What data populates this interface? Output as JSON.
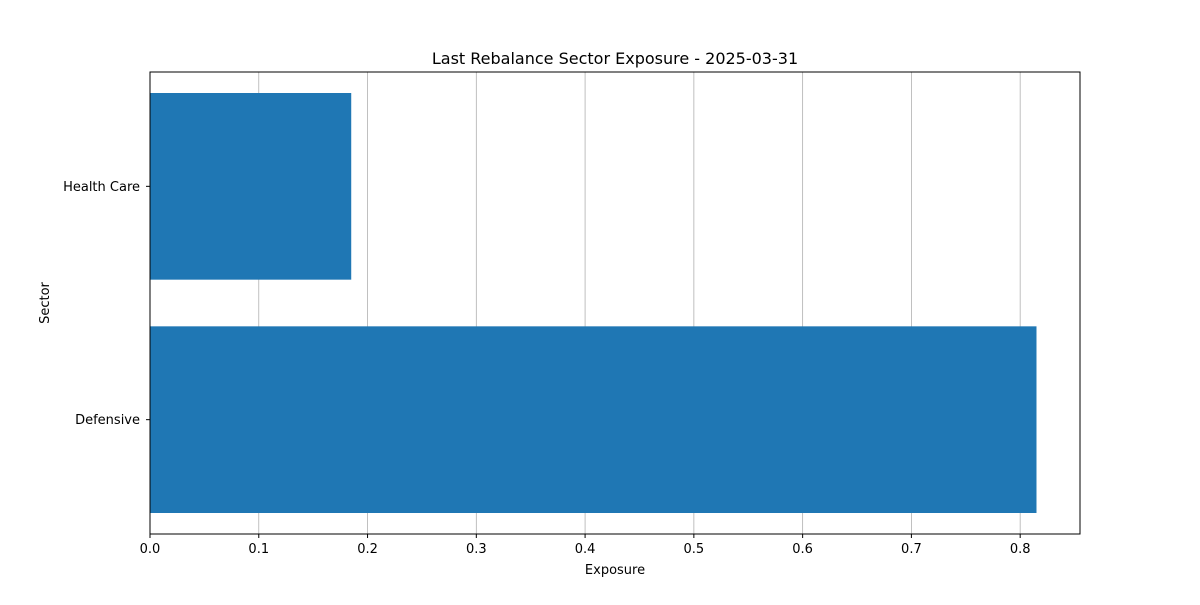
{
  "chart_data": {
    "type": "bar",
    "orientation": "horizontal",
    "title": "Last Rebalance Sector Exposure - 2025-03-31",
    "xlabel": "Exposure",
    "ylabel": "Sector",
    "categories": [
      "Defensive",
      "Health Care"
    ],
    "values": [
      0.815,
      0.185
    ],
    "xlim": [
      0,
      0.855
    ],
    "xticks": [
      0.0,
      0.1,
      0.2,
      0.3,
      0.4,
      0.5,
      0.6,
      0.7,
      0.8
    ],
    "xtick_labels": [
      "0.0",
      "0.1",
      "0.2",
      "0.3",
      "0.4",
      "0.5",
      "0.6",
      "0.7",
      "0.8"
    ],
    "grid": "x",
    "bar_color": "#1f77b4",
    "grid_color": "#b0b0b0"
  }
}
